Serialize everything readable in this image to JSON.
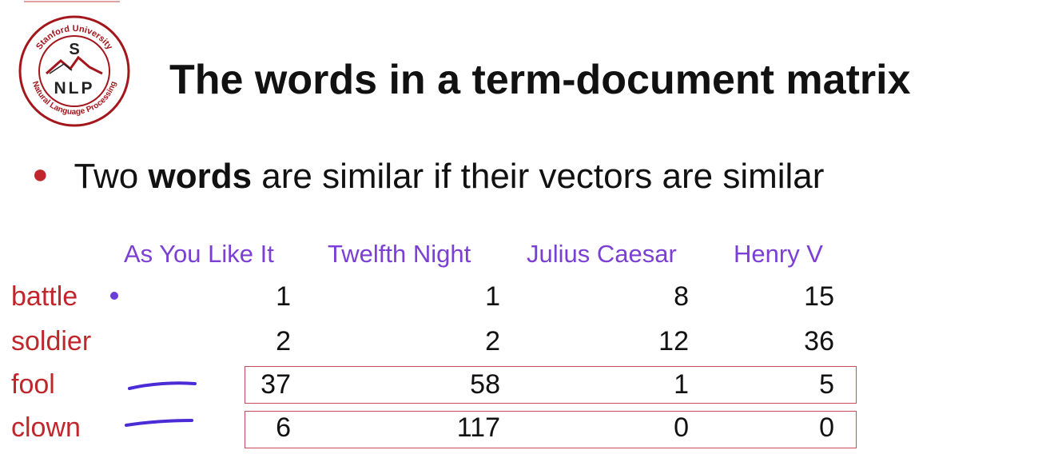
{
  "logo": {
    "top_text": "Stanford University",
    "bottom_text": "Natural Language Processing",
    "letter_top": "S",
    "letters_bottom": "NLP"
  },
  "title": "The words in a term-document matrix",
  "bullet": {
    "prefix": "Two ",
    "bold": "words",
    "suffix": " are similar if their vectors are similar"
  },
  "table": {
    "columns": [
      "As You Like It",
      "Twelfth Night",
      "Julius Caesar",
      "Henry V"
    ],
    "rows": [
      {
        "label": "battle",
        "values": [
          "1",
          "1",
          "8",
          "15"
        ]
      },
      {
        "label": "soldier",
        "values": [
          "2",
          "2",
          "12",
          "36"
        ]
      },
      {
        "label": "fool",
        "values": [
          "37",
          "58",
          "1",
          "5"
        ]
      },
      {
        "label": "clown",
        "values": [
          "6",
          "117",
          "0",
          "0"
        ]
      }
    ]
  },
  "colors": {
    "label_red": "#c0272d",
    "header_purple": "#7b3fd6",
    "box_border": "#c94a5a",
    "pen_blue": "#4a2bd6"
  }
}
